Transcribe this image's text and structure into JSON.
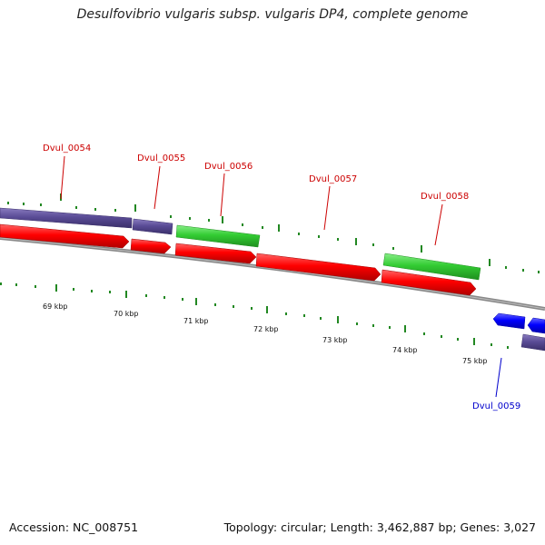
{
  "title": "Desulfovibrio vulgaris subsp. vulgaris DP4, complete genome",
  "footer": {
    "accession": "Accession: NC_008751",
    "summary": "Topology: circular; Length: 3,462,887 bp; Genes: 3,027"
  },
  "colors": {
    "forward_cds": "#ff0000",
    "reverse_cds": "#0000ff",
    "other_gene_a": "#5a4c96",
    "other_gene_b": "#33cc33",
    "label_forward": "#cc0000",
    "label_reverse": "#0000cc",
    "ticks": "#228822",
    "backbone": "#888888"
  },
  "gene_labels": [
    "Dvul_0054",
    "Dvul_0055",
    "Dvul_0056",
    "Dvul_0057",
    "Dvul_0058",
    "Dvul_0059"
  ],
  "kbp_labels": [
    "69 kbp",
    "70 kbp",
    "71 kbp",
    "72 kbp",
    "73 kbp",
    "74 kbp",
    "75 kbp"
  ]
}
